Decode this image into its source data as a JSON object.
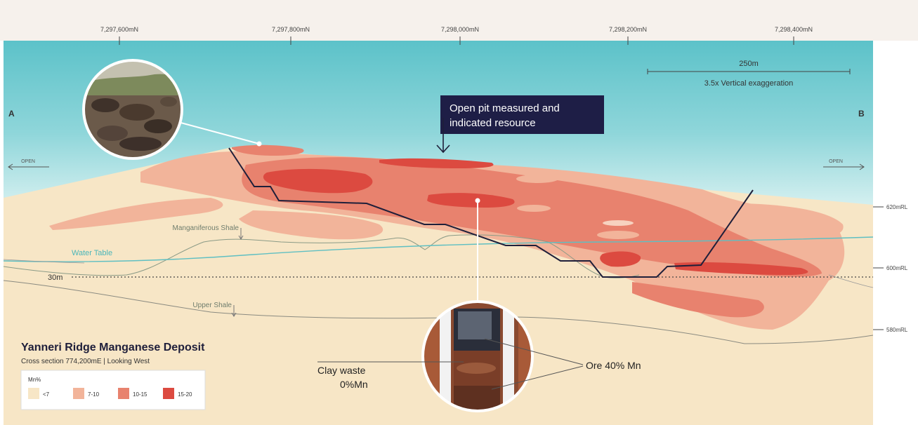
{
  "northings": [
    "7,297,600mN",
    "7,297,800mN",
    "7,298,000mN",
    "7,298,200mN",
    "7,298,400mN"
  ],
  "section_ends": {
    "left": "A",
    "right": "B"
  },
  "open_left": "OPEN",
  "open_right": "OPEN",
  "scale": {
    "length": "250m",
    "exaggeration": "3.5x Vertical exaggeration"
  },
  "callout": {
    "line1": "Open pit measured and",
    "line2": "indicated resource"
  },
  "rl_labels": [
    "620mRL",
    "600mRL",
    "580mRL"
  ],
  "layers": {
    "manganiferous_shale": "Manganiferous Shale",
    "water_table": "Water Table",
    "upper_shale": "Upper Shale",
    "depth_30": "30m"
  },
  "title": "Yanneri Ridge Manganese Deposit",
  "subtitle": "Cross section 774,200mE | Looking West",
  "legend": {
    "heading": "Mn%",
    "items": [
      {
        "label": "<7",
        "color": "#f7e6c6"
      },
      {
        "label": "7-10",
        "color": "#f2b49a"
      },
      {
        "label": "10-15",
        "color": "#e8826e"
      },
      {
        "label": "15-20",
        "color": "#dc4a40"
      }
    ]
  },
  "core_annotations": {
    "clay_waste_1": "Clay waste",
    "clay_waste_2": "0%Mn",
    "ore": "Ore 40% Mn"
  },
  "colors": {
    "sky_top": "#5cc2c9",
    "sky_bottom": "#cfeef0",
    "ground": "#f7e6c6",
    "pit_outline": "#1f1f3a",
    "callout_bg": "#1e1e46",
    "water_table": "#5fbfc2"
  }
}
